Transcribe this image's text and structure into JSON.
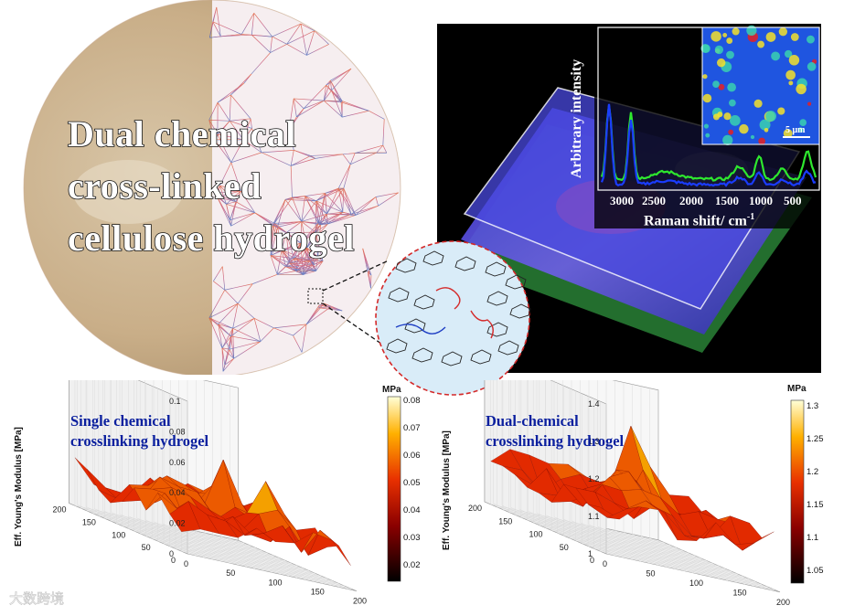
{
  "title": {
    "line1": "Dual chemical",
    "line2": "cross-linked",
    "line3": "cellulose hydrogel"
  },
  "raman": {
    "ylabel": "Arbitrary intensity",
    "xlabel": "Raman shift/ cm",
    "xlabel_sup": "-1",
    "xticks": [
      "3000",
      "2500",
      "2000",
      "1500",
      "1000",
      "500"
    ],
    "scalebar": "5 μm"
  },
  "left_plot": {
    "label_line1": "Single chemical",
    "label_line2": "crosslinking hydrogel",
    "zlabel": "Eff. Young's Modulus [MPa]",
    "zticks": [
      "0.1",
      "0.08",
      "0.06",
      "0.04",
      "0.02",
      "0"
    ],
    "yticks": [
      "200",
      "150",
      "100",
      "50",
      "0"
    ],
    "xticks": [
      "0",
      "50",
      "100",
      "150",
      "200"
    ],
    "cb_unit": "MPa",
    "cb_ticks": [
      "0.08",
      "0.07",
      "0.06",
      "0.05",
      "0.04",
      "0.03",
      "0.02"
    ]
  },
  "right_plot": {
    "label_line1": "Dual-chemical",
    "label_line2": "crosslinking hydrogel",
    "zlabel": "Eff. Young's Modulus [MPa]",
    "zticks": [
      "1.4",
      "1.3",
      "1.2",
      "1.1",
      "1"
    ],
    "yticks": [
      "200",
      "150",
      "100",
      "50",
      "0"
    ],
    "xticks": [
      "0",
      "50",
      "100",
      "150",
      "200"
    ],
    "cb_unit": "MPa",
    "cb_ticks": [
      "1.3",
      "1.25",
      "1.2",
      "1.15",
      "1.1",
      "1.05"
    ]
  },
  "watermark": "大数跨境",
  "colors": {
    "raman_blue": "#1a3cff",
    "raman_green": "#2ee82e",
    "surface_red": "#e8200a",
    "label_blue": "#0a1f9e"
  }
}
